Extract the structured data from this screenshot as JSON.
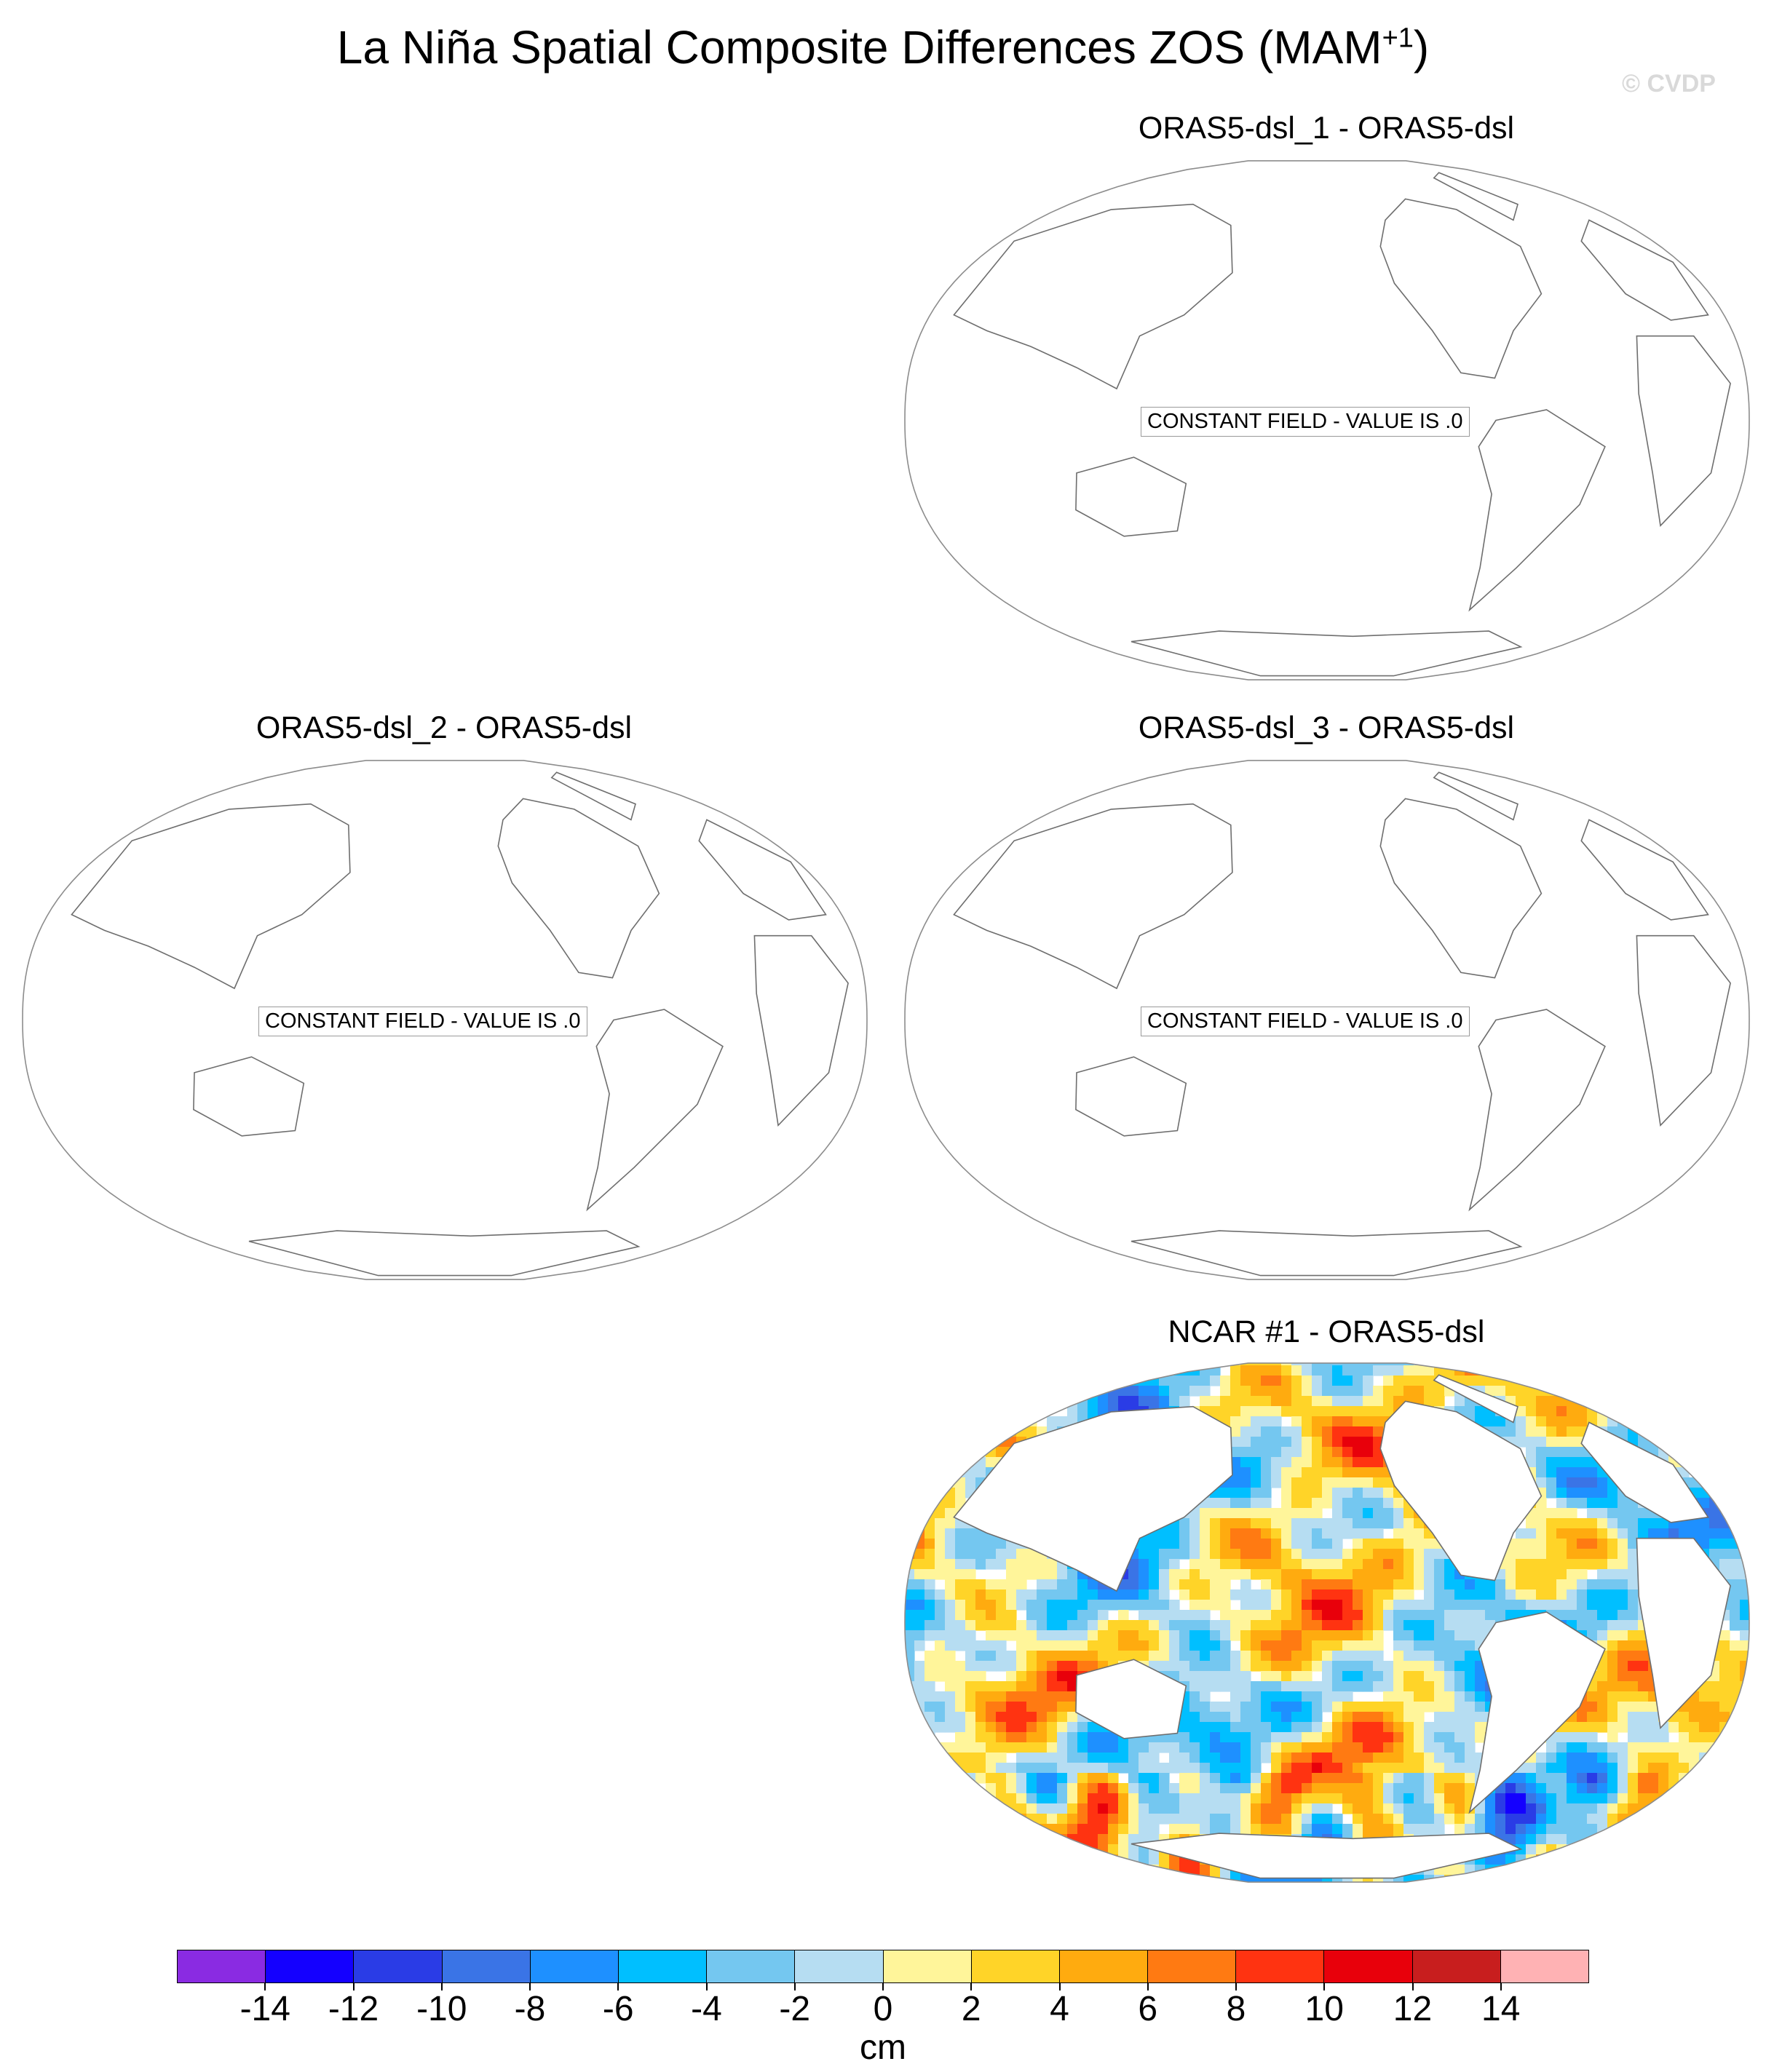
{
  "title": {
    "prefix": "La Niña Spatial Composite Differences ZOS (MAM",
    "superscript": "+1",
    "suffix": ")"
  },
  "watermark": "© CVDP",
  "panels": [
    {
      "title": "ORAS5-dsl_1 - ORAS5-dsl",
      "note": "CONSTANT FIELD - VALUE IS .0",
      "constant": true
    },
    {
      "title": "ORAS5-dsl_2 - ORAS5-dsl",
      "note": "CONSTANT FIELD - VALUE IS .0",
      "constant": true
    },
    {
      "title": "ORAS5-dsl_3 - ORAS5-dsl",
      "note": "CONSTANT FIELD - VALUE IS .0",
      "constant": true
    },
    {
      "title": "NCAR #1 - ORAS5-dsl",
      "constant": false
    }
  ],
  "colorbar": {
    "unit": "cm",
    "labels": [
      "-14",
      "-12",
      "-10",
      "-8",
      "-6",
      "-4",
      "-2",
      "0",
      "2",
      "4",
      "6",
      "8",
      "10",
      "12",
      "14"
    ],
    "colors": [
      "#8a2be2",
      "#1400ff",
      "#2a3ce6",
      "#3a74e6",
      "#1e90ff",
      "#00bfff",
      "#74c7f0",
      "#b6ddf2",
      "#fff59a",
      "#ffd428",
      "#ffab0f",
      "#ff7a12",
      "#ff3311",
      "#e8000b",
      "#c81e1e",
      "#ffb2b4"
    ]
  },
  "chart_data": {
    "type": "heatmap",
    "projection": "Robinson-like global map, Pacific-centred",
    "variable": "ZOS",
    "units": "cm",
    "contour_levels": [
      -14,
      -12,
      -10,
      -8,
      -6,
      -4,
      -2,
      0,
      2,
      4,
      6,
      8,
      10,
      12,
      14
    ],
    "panels": [
      {
        "title": "ORAS5-dsl_1 - ORAS5-dsl",
        "constant_value": 0
      },
      {
        "title": "ORAS5-dsl_2 - ORAS5-dsl",
        "constant_value": 0
      },
      {
        "title": "ORAS5-dsl_3 - ORAS5-dsl",
        "constant_value": 0
      },
      {
        "title": "NCAR #1 - ORAS5-dsl",
        "field": "non-constant difference field"
      }
    ]
  }
}
